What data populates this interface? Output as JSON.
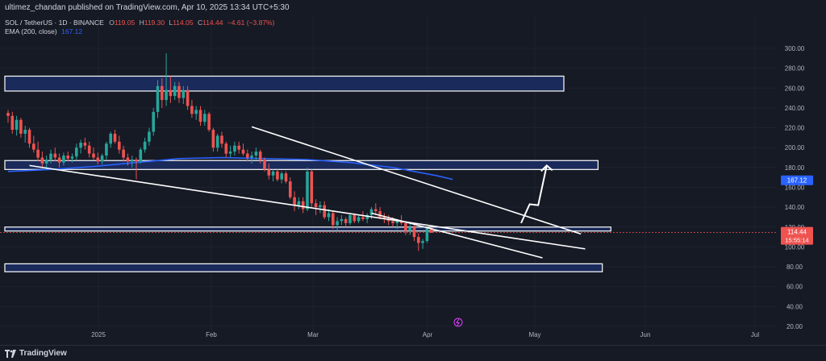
{
  "header": {
    "publish_line": "ultimez_chandan published on TradingView.com, Apr 10, 2025 13:34 UTC+5:30"
  },
  "legend": {
    "symbol": "SOL / TetherUS · 1D · BINANCE",
    "open_label": "O",
    "open": "119.05",
    "high_label": "H",
    "high": "119.30",
    "low_label": "L",
    "low": "114.05",
    "close_label": "C",
    "close": "114.44",
    "change": "−4.61 (−3.87%)",
    "ema_label": "EMA (200, close)",
    "ema_value": "167.12"
  },
  "price_axis": {
    "ticks": [
      "300.00",
      "280.00",
      "260.00",
      "240.00",
      "220.00",
      "200.00",
      "180.00",
      "160.00",
      "140.00",
      "120.00",
      "100.00",
      "80.00",
      "60.00",
      "40.00",
      "20.00"
    ],
    "ema_tag": "167.12",
    "last_price_tag": "114.44",
    "countdown_tag": "15:55:14"
  },
  "time_axis": {
    "ticks": [
      "2025",
      "Feb",
      "Mar",
      "Apr",
      "May",
      "Jun",
      "Jul"
    ]
  },
  "footer": {
    "brand": "TradingView"
  },
  "colors": {
    "background": "#161a25",
    "up": "#26a69a",
    "down": "#ef5350",
    "ema": "#2962ff",
    "zone_fill": "#1a2a5a",
    "zone_border": "#ffffff",
    "ema_tag": "#2962ff",
    "price_tag": "#ef5350",
    "icon_accent": "#e040fb"
  },
  "icons": {
    "replay": "replay-icon",
    "logo": "tradingview-logo-icon"
  },
  "chart_data": {
    "type": "candlestick",
    "symbol": "SOL / TetherUS",
    "interval": "1D",
    "ylim": [
      10,
      310
    ],
    "y_ticks": [
      20,
      40,
      60,
      80,
      100,
      120,
      140,
      160,
      180,
      200,
      220,
      240,
      260,
      280,
      300
    ],
    "x_labels": [
      "2025",
      "Feb",
      "Mar",
      "Apr",
      "May",
      "Jun",
      "Jul"
    ],
    "candles": [
      {
        "o": 235,
        "h": 238,
        "l": 225,
        "c": 232
      },
      {
        "o": 232,
        "h": 236,
        "l": 214,
        "c": 218
      },
      {
        "o": 218,
        "h": 232,
        "l": 212,
        "c": 228
      },
      {
        "o": 228,
        "h": 230,
        "l": 210,
        "c": 214
      },
      {
        "o": 214,
        "h": 222,
        "l": 205,
        "c": 218
      },
      {
        "o": 218,
        "h": 220,
        "l": 200,
        "c": 204
      },
      {
        "o": 204,
        "h": 212,
        "l": 195,
        "c": 198
      },
      {
        "o": 198,
        "h": 206,
        "l": 186,
        "c": 190
      },
      {
        "o": 190,
        "h": 196,
        "l": 180,
        "c": 184
      },
      {
        "o": 184,
        "h": 192,
        "l": 178,
        "c": 188
      },
      {
        "o": 188,
        "h": 198,
        "l": 184,
        "c": 194
      },
      {
        "o": 194,
        "h": 200,
        "l": 186,
        "c": 190
      },
      {
        "o": 190,
        "h": 194,
        "l": 180,
        "c": 185
      },
      {
        "o": 185,
        "h": 195,
        "l": 182,
        "c": 192
      },
      {
        "o": 192,
        "h": 196,
        "l": 186,
        "c": 189
      },
      {
        "o": 189,
        "h": 194,
        "l": 185,
        "c": 191
      },
      {
        "o": 191,
        "h": 204,
        "l": 188,
        "c": 200
      },
      {
        "o": 200,
        "h": 208,
        "l": 194,
        "c": 205
      },
      {
        "o": 205,
        "h": 210,
        "l": 198,
        "c": 202
      },
      {
        "o": 202,
        "h": 206,
        "l": 190,
        "c": 194
      },
      {
        "o": 194,
        "h": 200,
        "l": 188,
        "c": 190
      },
      {
        "o": 190,
        "h": 195,
        "l": 183,
        "c": 186
      },
      {
        "o": 186,
        "h": 194,
        "l": 183,
        "c": 192
      },
      {
        "o": 192,
        "h": 206,
        "l": 188,
        "c": 204
      },
      {
        "o": 204,
        "h": 216,
        "l": 200,
        "c": 214
      },
      {
        "o": 214,
        "h": 218,
        "l": 204,
        "c": 206
      },
      {
        "o": 206,
        "h": 212,
        "l": 194,
        "c": 198
      },
      {
        "o": 198,
        "h": 202,
        "l": 186,
        "c": 190
      },
      {
        "o": 190,
        "h": 194,
        "l": 182,
        "c": 186
      },
      {
        "o": 186,
        "h": 192,
        "l": 180,
        "c": 188
      },
      {
        "o": 188,
        "h": 190,
        "l": 168,
        "c": 186
      },
      {
        "o": 186,
        "h": 200,
        "l": 184,
        "c": 198
      },
      {
        "o": 198,
        "h": 210,
        "l": 195,
        "c": 206
      },
      {
        "o": 206,
        "h": 220,
        "l": 202,
        "c": 216
      },
      {
        "o": 216,
        "h": 240,
        "l": 212,
        "c": 236
      },
      {
        "o": 236,
        "h": 268,
        "l": 230,
        "c": 262
      },
      {
        "o": 262,
        "h": 270,
        "l": 240,
        "c": 248
      },
      {
        "o": 248,
        "h": 295,
        "l": 242,
        "c": 258
      },
      {
        "o": 258,
        "h": 272,
        "l": 245,
        "c": 252
      },
      {
        "o": 252,
        "h": 266,
        "l": 248,
        "c": 262
      },
      {
        "o": 262,
        "h": 266,
        "l": 245,
        "c": 250
      },
      {
        "o": 250,
        "h": 262,
        "l": 244,
        "c": 258
      },
      {
        "o": 258,
        "h": 262,
        "l": 238,
        "c": 242
      },
      {
        "o": 242,
        "h": 248,
        "l": 230,
        "c": 234
      },
      {
        "o": 234,
        "h": 242,
        "l": 228,
        "c": 238
      },
      {
        "o": 238,
        "h": 242,
        "l": 222,
        "c": 226
      },
      {
        "o": 226,
        "h": 238,
        "l": 222,
        "c": 234
      },
      {
        "o": 234,
        "h": 236,
        "l": 216,
        "c": 218
      },
      {
        "o": 218,
        "h": 220,
        "l": 196,
        "c": 200
      },
      {
        "o": 200,
        "h": 214,
        "l": 196,
        "c": 212
      },
      {
        "o": 212,
        "h": 216,
        "l": 200,
        "c": 204
      },
      {
        "o": 204,
        "h": 206,
        "l": 190,
        "c": 194
      },
      {
        "o": 194,
        "h": 202,
        "l": 190,
        "c": 196
      },
      {
        "o": 196,
        "h": 206,
        "l": 192,
        "c": 202
      },
      {
        "o": 202,
        "h": 206,
        "l": 194,
        "c": 198
      },
      {
        "o": 198,
        "h": 204,
        "l": 192,
        "c": 194
      },
      {
        "o": 194,
        "h": 198,
        "l": 186,
        "c": 190
      },
      {
        "o": 190,
        "h": 196,
        "l": 184,
        "c": 192
      },
      {
        "o": 192,
        "h": 200,
        "l": 188,
        "c": 196
      },
      {
        "o": 196,
        "h": 198,
        "l": 184,
        "c": 188
      },
      {
        "o": 188,
        "h": 190,
        "l": 176,
        "c": 178
      },
      {
        "o": 178,
        "h": 184,
        "l": 168,
        "c": 172
      },
      {
        "o": 172,
        "h": 178,
        "l": 166,
        "c": 176
      },
      {
        "o": 176,
        "h": 178,
        "l": 166,
        "c": 168
      },
      {
        "o": 168,
        "h": 176,
        "l": 164,
        "c": 174
      },
      {
        "o": 174,
        "h": 176,
        "l": 164,
        "c": 166
      },
      {
        "o": 166,
        "h": 170,
        "l": 148,
        "c": 150
      },
      {
        "o": 150,
        "h": 156,
        "l": 136,
        "c": 142
      },
      {
        "o": 142,
        "h": 150,
        "l": 138,
        "c": 146
      },
      {
        "o": 146,
        "h": 150,
        "l": 134,
        "c": 138
      },
      {
        "o": 138,
        "h": 180,
        "l": 136,
        "c": 176
      },
      {
        "o": 176,
        "h": 178,
        "l": 140,
        "c": 144
      },
      {
        "o": 144,
        "h": 148,
        "l": 132,
        "c": 140
      },
      {
        "o": 140,
        "h": 146,
        "l": 134,
        "c": 142
      },
      {
        "o": 142,
        "h": 146,
        "l": 128,
        "c": 130
      },
      {
        "o": 130,
        "h": 138,
        "l": 126,
        "c": 134
      },
      {
        "o": 134,
        "h": 136,
        "l": 118,
        "c": 122
      },
      {
        "o": 122,
        "h": 130,
        "l": 116,
        "c": 126
      },
      {
        "o": 126,
        "h": 132,
        "l": 122,
        "c": 128
      },
      {
        "o": 128,
        "h": 130,
        "l": 120,
        "c": 124
      },
      {
        "o": 124,
        "h": 134,
        "l": 122,
        "c": 132
      },
      {
        "o": 132,
        "h": 134,
        "l": 124,
        "c": 126
      },
      {
        "o": 126,
        "h": 132,
        "l": 124,
        "c": 130
      },
      {
        "o": 130,
        "h": 136,
        "l": 126,
        "c": 128
      },
      {
        "o": 128,
        "h": 134,
        "l": 124,
        "c": 132
      },
      {
        "o": 132,
        "h": 140,
        "l": 128,
        "c": 138
      },
      {
        "o": 138,
        "h": 144,
        "l": 132,
        "c": 136
      },
      {
        "o": 136,
        "h": 140,
        "l": 128,
        "c": 130
      },
      {
        "o": 130,
        "h": 134,
        "l": 124,
        "c": 128
      },
      {
        "o": 128,
        "h": 132,
        "l": 122,
        "c": 126
      },
      {
        "o": 126,
        "h": 130,
        "l": 120,
        "c": 124
      },
      {
        "o": 124,
        "h": 128,
        "l": 118,
        "c": 126
      },
      {
        "o": 126,
        "h": 132,
        "l": 122,
        "c": 124
      },
      {
        "o": 124,
        "h": 126,
        "l": 112,
        "c": 116
      },
      {
        "o": 116,
        "h": 124,
        "l": 112,
        "c": 120
      },
      {
        "o": 120,
        "h": 122,
        "l": 106,
        "c": 110
      },
      {
        "o": 110,
        "h": 114,
        "l": 96,
        "c": 104
      },
      {
        "o": 104,
        "h": 108,
        "l": 98,
        "c": 106
      },
      {
        "o": 106,
        "h": 120,
        "l": 104,
        "c": 119
      },
      {
        "o": 119.05,
        "h": 119.3,
        "l": 114.05,
        "c": 114.44
      }
    ],
    "ema200": [
      [
        0,
        176
      ],
      [
        10,
        178
      ],
      [
        20,
        181
      ],
      [
        30,
        185
      ],
      [
        40,
        189
      ],
      [
        50,
        190
      ],
      [
        60,
        189
      ],
      [
        70,
        188
      ],
      [
        80,
        185
      ],
      [
        90,
        180
      ],
      [
        100,
        172
      ],
      [
        104,
        168
      ]
    ],
    "zones": [
      {
        "from": 0,
        "to": 130,
        "low": 257,
        "high": 272
      },
      {
        "from": 0,
        "to": 138,
        "low": 178,
        "high": 187
      },
      {
        "from": 0,
        "to": 141,
        "low": 116,
        "high": 120
      },
      {
        "from": 0,
        "to": 139,
        "low": 75,
        "high": 83
      }
    ],
    "trendlines": [
      {
        "x1": 5,
        "y1": 182,
        "x2": 135,
        "y2": 98
      },
      {
        "x1": 57,
        "y1": 221,
        "x2": 134,
        "y2": 113
      },
      {
        "x1": 85,
        "y1": 134,
        "x2": 125,
        "y2": 89
      }
    ],
    "projection": [
      [
        120,
        124
      ],
      [
        122,
        143
      ],
      [
        124,
        142
      ],
      [
        126,
        182
      ]
    ],
    "last_price": 114.44
  }
}
